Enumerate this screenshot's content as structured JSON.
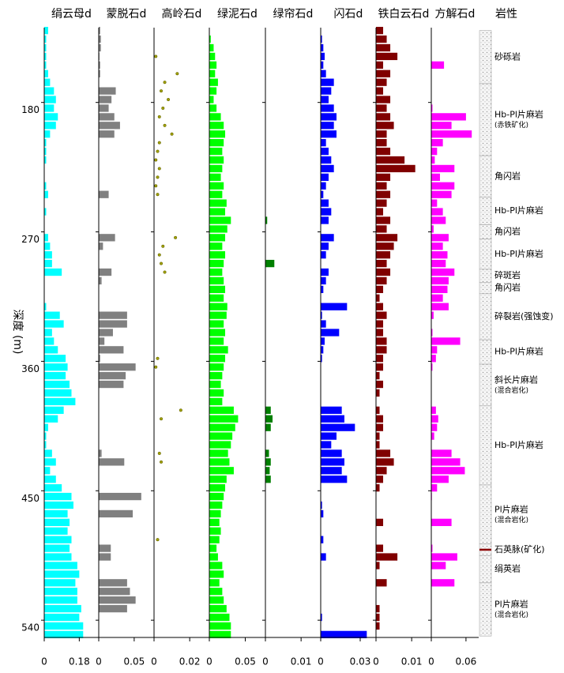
{
  "chart_data": {
    "type": "well-log",
    "ylabel": "深度 (m)",
    "ylim": [
      128,
      552
    ],
    "yticks": [
      180,
      270,
      360,
      450,
      540
    ],
    "depths": [
      130,
      136,
      142,
      148,
      154,
      160,
      166,
      172,
      178,
      184,
      190,
      196,
      202,
      208,
      214,
      220,
      226,
      232,
      238,
      244,
      250,
      256,
      262,
      268,
      274,
      280,
      286,
      292,
      298,
      304,
      310,
      316,
      322,
      328,
      334,
      340,
      346,
      352,
      358,
      364,
      370,
      376,
      382,
      388,
      394,
      400,
      406,
      412,
      418,
      424,
      430,
      436,
      442,
      448,
      454,
      460,
      466,
      472,
      478,
      484,
      490,
      496,
      502,
      508,
      514,
      520,
      526,
      532,
      538,
      544,
      550
    ],
    "panels": [
      {
        "title": "绢云母d",
        "type": "bar",
        "color": "#00ffff",
        "xlim": [
          0,
          0.28
        ],
        "xticks": [
          0,
          0.18
        ],
        "values": [
          0.02,
          0.01,
          0.01,
          0.01,
          0.01,
          0.02,
          0.03,
          0.05,
          0.06,
          0.05,
          0.07,
          0.06,
          0.03,
          0.01,
          0.01,
          0.01,
          0,
          0,
          0.01,
          0.02,
          0,
          0.01,
          0,
          0,
          0.02,
          0.03,
          0.04,
          0.04,
          0.09,
          0,
          0,
          0,
          0.01,
          0.08,
          0.1,
          0.04,
          0.05,
          0.07,
          0.11,
          0.12,
          0.11,
          0.13,
          0.14,
          0.16,
          0.1,
          0.07,
          0.02,
          0.01,
          0.01,
          0.04,
          0.06,
          0.03,
          0.06,
          0.09,
          0.14,
          0.15,
          0.12,
          0.13,
          0.12,
          0.14,
          0.13,
          0.14,
          0.17,
          0.18,
          0.16,
          0.17,
          0.17,
          0.19,
          0.18,
          0.2,
          0.2
        ]
      },
      {
        "title": "蒙脱石d",
        "type": "bar",
        "color": "#808080",
        "xlim": [
          0,
          0.078
        ],
        "xticks": [
          0,
          0.05
        ],
        "values": [
          0.002,
          0.003,
          0.003,
          0.001,
          0.002,
          0.002,
          0,
          0.024,
          0.018,
          0.014,
          0.022,
          0.03,
          0.022,
          0,
          0,
          0,
          0,
          0,
          0,
          0.014,
          0,
          0,
          0,
          0,
          0.023,
          0.006,
          0,
          0,
          0.018,
          0.004,
          0,
          0,
          0,
          0.04,
          0.04,
          0.02,
          0.008,
          0.035,
          0.002,
          0.052,
          0.038,
          0.035,
          0,
          0,
          0,
          0,
          0,
          0,
          0,
          0.004,
          0.036,
          0,
          0,
          0,
          0.06,
          0,
          0.048,
          0,
          0,
          0,
          0.017,
          0.017,
          0,
          0,
          0.04,
          0.044,
          0.052,
          0.04,
          0,
          0,
          0
        ]
      },
      {
        "title": "高岭石d",
        "type": "scatter",
        "color": "#a0a000",
        "xlim": [
          0,
          0.031
        ],
        "xticks": [
          0,
          0.02
        ],
        "values": [
          null,
          null,
          null,
          0.001,
          null,
          0.013,
          0.006,
          0.004,
          0.008,
          0.005,
          0.003,
          0.006,
          0.01,
          0.003,
          0.002,
          0.001,
          0.003,
          0.002,
          0.001,
          0.002,
          null,
          null,
          null,
          null,
          0.012,
          0.005,
          0.003,
          0.004,
          0.006,
          null,
          null,
          null,
          null,
          null,
          null,
          null,
          null,
          null,
          0.002,
          0.001,
          null,
          null,
          null,
          null,
          0.015,
          0.004,
          null,
          null,
          null,
          0.003,
          0.004,
          null,
          null,
          null,
          null,
          null,
          null,
          null,
          null,
          0.002,
          null,
          null,
          null,
          null,
          null,
          null,
          null,
          null,
          null,
          null,
          null
        ]
      },
      {
        "title": "绿泥石d",
        "type": "bar",
        "color": "#00ff00",
        "xlim": [
          0,
          0.078
        ],
        "xticks": [
          0,
          0.05
        ],
        "values": [
          0,
          0.002,
          0.006,
          0.008,
          0.01,
          0.008,
          0.012,
          0.01,
          0.006,
          0.01,
          0.016,
          0.02,
          0.022,
          0.02,
          0.018,
          0.02,
          0.018,
          0.016,
          0.02,
          0.018,
          0.024,
          0.022,
          0.03,
          0.025,
          0.022,
          0.018,
          0.022,
          0.02,
          0.018,
          0.02,
          0.022,
          0.02,
          0.025,
          0.024,
          0.02,
          0.022,
          0.02,
          0.026,
          0.022,
          0.02,
          0.018,
          0.016,
          0.02,
          0.018,
          0.034,
          0.04,
          0.036,
          0.032,
          0.03,
          0.026,
          0.028,
          0.034,
          0.024,
          0.022,
          0.02,
          0.018,
          0.016,
          0.014,
          0.016,
          0.014,
          0.01,
          0.012,
          0.018,
          0.02,
          0.014,
          0.018,
          0.02,
          0.024,
          0.028,
          0.03,
          0.03
        ]
      },
      {
        "title": "绿帘石d",
        "type": "bar",
        "color": "#007f00",
        "xlim": [
          0,
          0.0155
        ],
        "xticks": [
          0,
          0.01
        ],
        "values": [
          0,
          0,
          0,
          0,
          0,
          0,
          0,
          0,
          0,
          0,
          0,
          0,
          0,
          0,
          0,
          0,
          0,
          0,
          0,
          0,
          0,
          0,
          0.0005,
          0,
          0,
          0,
          0,
          0.0025,
          0,
          0,
          0,
          0,
          0,
          0,
          0,
          0,
          0,
          0,
          0,
          0,
          0,
          0,
          0,
          0,
          0.0015,
          0.002,
          0.0015,
          0,
          0,
          0.001,
          0.0015,
          0.0012,
          0.0015,
          0,
          0,
          0,
          0,
          0,
          0,
          0,
          0,
          0,
          0,
          0,
          0,
          0,
          0,
          0,
          0,
          0,
          0
        ]
      },
      {
        "title": "闪石d",
        "type": "bar",
        "color": "#0000ff",
        "xlim": [
          0,
          0.042
        ],
        "xticks": [
          0,
          0.03
        ],
        "values": [
          0,
          0.001,
          0.002,
          0.003,
          0.002,
          0.004,
          0.01,
          0.008,
          0.006,
          0.01,
          0.012,
          0.01,
          0.012,
          0.004,
          0.006,
          0.008,
          0.01,
          0.006,
          0.004,
          0.002,
          0.006,
          0.008,
          0.006,
          0,
          0.01,
          0.006,
          0.004,
          0,
          0.006,
          0.004,
          0.002,
          0,
          0.02,
          0.001,
          0.004,
          0.014,
          0.003,
          0.002,
          0.001,
          0,
          0,
          0,
          0,
          0,
          0.016,
          0.018,
          0.026,
          0.012,
          0.008,
          0.016,
          0.018,
          0.016,
          0.02,
          0,
          0,
          0.001,
          0.002,
          0,
          0,
          0.002,
          0,
          0.004,
          0,
          0,
          0,
          0,
          0,
          0,
          0.001,
          0,
          0.035
        ]
      },
      {
        "title": "铁白云石d",
        "type": "bar",
        "color": "#800000",
        "xlim": [
          0,
          0.0155
        ],
        "xticks": [
          0,
          0.01
        ],
        "values": [
          0.002,
          0.003,
          0.004,
          0.006,
          0.002,
          0.004,
          0.003,
          0.002,
          0.004,
          0.003,
          0.004,
          0.005,
          0.003,
          0.003,
          0.004,
          0.008,
          0.011,
          0.004,
          0.003,
          0.004,
          0.003,
          0.002,
          0.004,
          0.003,
          0.006,
          0.005,
          0.004,
          0.003,
          0.004,
          0.003,
          0.002,
          0.001,
          0.002,
          0.003,
          0.002,
          0.002,
          0.003,
          0.003,
          0.002,
          0.002,
          0.001,
          0.002,
          0.001,
          0,
          0.001,
          0.002,
          0.002,
          0.001,
          0.001,
          0.004,
          0.005,
          0.003,
          0.002,
          0.001,
          0,
          0,
          0,
          0.002,
          0,
          0,
          0.002,
          0.006,
          0.001,
          0,
          0.003,
          0,
          0,
          0.001,
          0.001,
          0.001,
          0
        ]
      },
      {
        "title": "方解石d",
        "type": "bar",
        "color": "#ff00ff",
        "xlim": [
          0,
          0.082
        ],
        "xticks": [
          0,
          0.06
        ],
        "values": [
          0,
          0,
          0,
          0,
          0.022,
          0,
          0,
          0,
          0,
          0.002,
          0.06,
          0.035,
          0.07,
          0.02,
          0.01,
          0.006,
          0.04,
          0.015,
          0.04,
          0.035,
          0.01,
          0.02,
          0.025,
          0.004,
          0.03,
          0.02,
          0.028,
          0.025,
          0.04,
          0.03,
          0.028,
          0.02,
          0.03,
          0.004,
          0,
          0.002,
          0.05,
          0.01,
          0.008,
          0.002,
          0,
          0,
          0,
          0,
          0.008,
          0.012,
          0.01,
          0.005,
          0,
          0.035,
          0.05,
          0.058,
          0.03,
          0.01,
          0.001,
          0,
          0,
          0.035,
          0,
          0,
          0.002,
          0.045,
          0.025,
          0,
          0.04,
          0,
          0,
          0,
          0,
          0,
          0
        ]
      }
    ],
    "lithology": {
      "title": "岩性",
      "layers": [
        {
          "label": "砂砾岩",
          "top": 130,
          "bottom": 167
        },
        {
          "label": "Hb-Pl片麻岩",
          "note": "(赤铁矿化)",
          "top": 167,
          "bottom": 217
        },
        {
          "label": "角闪岩",
          "top": 217,
          "bottom": 246
        },
        {
          "label": "Hb-Pl片麻岩",
          "top": 246,
          "bottom": 265
        },
        {
          "label": "角闪岩",
          "top": 265,
          "bottom": 275
        },
        {
          "label": "Hb-Pl片麻岩",
          "top": 275,
          "bottom": 296
        },
        {
          "label": "碎斑岩",
          "top": 296,
          "bottom": 305
        },
        {
          "label": "角闪岩",
          "top": 305,
          "bottom": 313
        },
        {
          "label": "碎裂岩(强蚀变)",
          "top": 313,
          "bottom": 345
        },
        {
          "label": "Hb-Pl片麻岩",
          "top": 345,
          "bottom": 362
        },
        {
          "label": "斜长片麻岩",
          "note": "(混合岩化)",
          "top": 362,
          "bottom": 391
        },
        {
          "label": "Hb-Pl片麻岩",
          "top": 391,
          "bottom": 446
        },
        {
          "label": "Pl片麻岩",
          "note": "(混合岩化)",
          "top": 446,
          "bottom": 487
        },
        {
          "label": "石英脉(矿化)",
          "color": "#8b0000",
          "top": 487,
          "bottom": 495
        },
        {
          "label": "绢英岩",
          "top": 495,
          "bottom": 514
        },
        {
          "label": "Pl片麻岩",
          "note": "(混合岩化)",
          "top": 514,
          "bottom": 551
        }
      ]
    }
  }
}
